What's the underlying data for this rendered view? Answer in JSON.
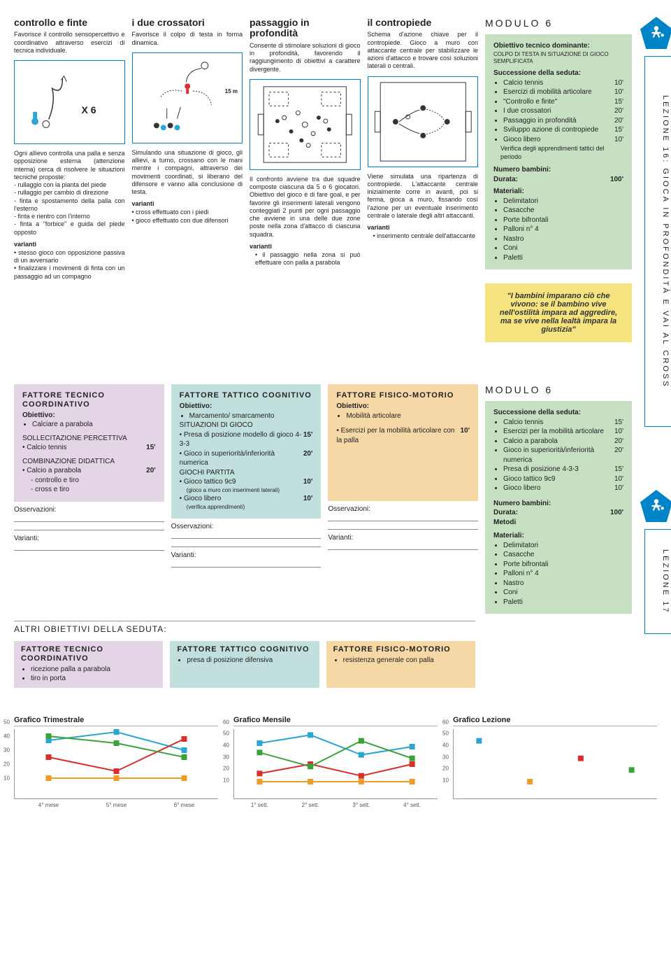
{
  "module_label": "MODULO 6",
  "lesson16_tab": "LEZIONE 16: GIOCA IN PROFONDITÀ E VAI AL CROSS",
  "lesson17_tab": "LEZIONE 17",
  "exercises": [
    {
      "title": "controllo e finte",
      "intro": "Favorisce il controllo sensopercettivo e coordinativo attraverso esercizi di tecnica individuale.",
      "x6": "X 6",
      "body": "Ogni allievo controlla una palla e senza opposizione esterna (attenzione interna) cerca di risolvere le situazioni tecniche proposte:\n- rullaggio con la pianta del piede\n- rullaggio per cambio di direzione\n- finta e spostamento della palla con l'esterno\n- finta e rientro con l'interno\n- finta a \"forbice\" e guida del piede opposto",
      "variants_head": "varianti",
      "variants": "• stesso gioco con opposizione passiva di un avversario\n• finalizzare i movimenti di finta con un passaggio ad un compagno"
    },
    {
      "title": "i due crossatori",
      "intro": "Favorisce il colpo di testa in forma dinamica.",
      "dist": "15 m",
      "body": "Simulando una situazione di gioco, gli allievi, a turno, crossano con le mani mentre i compagni, attraverso dei movimenti coordinati, si liberano del difensore e vanno alla conclusione di testa.",
      "variants_head": "varianti",
      "variants": "• cross effettuato con i piedi\n• gioco effettuato con due difensori"
    },
    {
      "title": "passaggio in profondità",
      "intro": "Consente di stimolare soluzioni di gioco in profondità, favorendo il raggiungimento di obiettivi a carattere divergente.",
      "body": "Il confronto avviene tra due squadre composte ciascuna da 5 o 6 giocatori. Obiettivo del gioco è di fare goal, e per favorire gli inserimenti laterali vengono conteggiati 2 punti per ogni passaggio che avviene in una delle due zone poste nella zona d'attacco di ciascuna squadra.",
      "variants_head": "varianti",
      "variants": "• il passaggio nella zona si può effettuare con palla a parabola"
    },
    {
      "title": "il contropiede",
      "intro": "Schema d'azione chiave per il contropiede. Gioco a muro con attaccante centrale per stabilizzare le azioni d'attacco e trovare così soluzioni laterali o centrali.",
      "body": "Viene simulata una ripartenza di contropiede. L'attaccante centrale inizialmente corre in avanti, poi si ferma, gioca a muro, fissando così l'azione per un eventuale inserimento centrale o laterale degli altri attaccanti.",
      "variants_head": "varianti",
      "variants": "• inserimento centrale dell'attaccante"
    }
  ],
  "mod6": {
    "obj_head": "Obiettivo tecnico dominante:",
    "obj_sub": "COLPO DI TESTA IN SITUAZIONE DI GIOCO SEMPLIFICATA",
    "succ_head": "Successione della seduta:",
    "items": [
      {
        "label": "Calcio tennis",
        "dur": "10'"
      },
      {
        "label": "Esercizi di mobilità articolare",
        "dur": "10'"
      },
      {
        "label": "\"Controllo e finte\"",
        "dur": "15'"
      },
      {
        "label": "I due crossatori",
        "dur": "20'"
      },
      {
        "label": "Passaggio in profondità",
        "dur": "20'"
      },
      {
        "label": "Sviluppo azione di contropiede",
        "dur": "15'"
      },
      {
        "label": "Gioco libero",
        "dur": "10'"
      }
    ],
    "verify": "Verifica degli apprendimenti tattici del periodo",
    "num_head": "Numero bambini:",
    "dur_head": "Durata:",
    "dur_val": "100'",
    "mat_head": "Materiali:",
    "materials": [
      "Delimitatori",
      "Casacche",
      "Porte bifrontali",
      "Palloni n° 4",
      "Nastro",
      "Coni",
      "Paletti"
    ]
  },
  "quote": "\"I bambini imparano ciò che vivono: se il bambino vive nell'ostilità impara ad aggredire, ma se vive nella lealtà impara la giustizia\"",
  "factors": {
    "coord": {
      "title": "FATTORE TECNICO COORDINATIVO",
      "obj_head": "Obiettivo:",
      "obj": "Calciare a parabola",
      "s1_head": "SOLLECITAZIONE PERCETTIVA",
      "s1_item": "Calcio tennis",
      "s1_dur": "15'",
      "s2_head": "COMBINAZIONE DIDATTICA",
      "s2_item": "Calcio a parabola",
      "s2_dur": "20'",
      "s2_sub1": "- controllo e tiro",
      "s2_sub2": "- cross e tiro",
      "obs": "Osservazioni:",
      "var": "Varianti:"
    },
    "cogn": {
      "title": "FATTORE TATTICO COGNITIVO",
      "obj_head": "Obiettivo:",
      "obj": "Marcamento/ smarcamento",
      "g1_head": "SITUAZIONI DI GIOCO",
      "g1a": "Presa di posizione modello di gioco 4-3-3",
      "g1a_dur": "15'",
      "g1b": "Gioco in superiorità/inferiorità numerica",
      "g1b_dur": "20'",
      "g2_head": "GIOCHI PARTITA",
      "g2a": "Gioco tattico 9c9",
      "g2a_dur": "10'",
      "g2a_sub": "(gioco a muro con inserimenti laterali)",
      "g2b": "Gioco libero",
      "g2b_dur": "10'",
      "g2b_sub": "(verifica apprendimenti)",
      "obs": "Osservazioni:",
      "var": "Varianti:"
    },
    "fis": {
      "title": "FATTORE FISICO-MOTORIO",
      "obj_head": "Obiettivo:",
      "obj": "Mobilità articolare",
      "i1": "Esercizi per la mobilità articolare con la palla",
      "i1_dur": "10'",
      "obs": "Osservazioni:",
      "var": "Varianti:"
    }
  },
  "mod6b": {
    "succ_head": "Successione della seduta:",
    "items": [
      {
        "label": "Calcio tennis",
        "dur": "15'"
      },
      {
        "label": "Esercizi per la mobilità articolare",
        "dur": "10'"
      },
      {
        "label": "Calcio a parabola",
        "dur": "20'"
      },
      {
        "label": "Gioco in superiorità/inferiorità numerica",
        "dur": "20'"
      },
      {
        "label": "Presa di posizione 4-3-3",
        "dur": "15'"
      },
      {
        "label": "Gioco tattico 9c9",
        "dur": "10'"
      },
      {
        "label": "Gioco libero",
        "dur": "10'"
      }
    ],
    "num_head": "Numero bambini:",
    "dur_head": "Durata:",
    "dur_val": "100'",
    "met_head": "Metodi",
    "mat_head": "Materiali:",
    "materials": [
      "Delimitatori",
      "Casacche",
      "Porte bifrontali",
      "Palloni n° 4",
      "Nastro",
      "Coni",
      "Paletti"
    ]
  },
  "other_obj_head": "ALTRI OBIETTIVI DELLA SEDUTA:",
  "other": {
    "coord_items": [
      "ricezione palla a parabola",
      "tiro in porta"
    ],
    "cogn_items": [
      "presa di posizione difensiva"
    ],
    "fis_items": [
      "resistenza generale con palla"
    ]
  },
  "charts": {
    "colors": {
      "blue": "#29a6d4",
      "orange": "#f09a2a",
      "red": "#d82e2e",
      "green": "#3aa23a"
    },
    "trim": {
      "title": "Grafico Trimestrale",
      "yticks": [
        10,
        20,
        30,
        40,
        50
      ],
      "xlabels": [
        "4° mese",
        "5° mese",
        "6° mese"
      ],
      "series": [
        {
          "color": "#29a6d4",
          "vals": [
            42,
            48,
            35
          ]
        },
        {
          "color": "#f09a2a",
          "vals": [
            15,
            15,
            15
          ]
        },
        {
          "color": "#d82e2e",
          "vals": [
            30,
            20,
            43
          ]
        },
        {
          "color": "#3aa23a",
          "vals": [
            45,
            40,
            30
          ]
        }
      ]
    },
    "mens": {
      "title": "Grafico Mensile",
      "yticks": [
        10,
        20,
        30,
        40,
        50,
        60
      ],
      "xlabels": [
        "1° sett.",
        "2° sett.",
        "3° sett.",
        "4° sett."
      ],
      "series": [
        {
          "color": "#29a6d4",
          "vals": [
            48,
            55,
            38,
            45
          ]
        },
        {
          "color": "#f09a2a",
          "vals": [
            15,
            15,
            15,
            15
          ]
        },
        {
          "color": "#d82e2e",
          "vals": [
            22,
            30,
            20,
            30
          ]
        },
        {
          "color": "#3aa23a",
          "vals": [
            40,
            28,
            50,
            35
          ]
        }
      ]
    },
    "lez": {
      "title": "Grafico Lezione",
      "yticks": [
        10,
        20,
        30,
        40,
        50,
        60
      ],
      "pts": [
        {
          "color": "#29a6d4",
          "val": 50
        },
        {
          "color": "#f09a2a",
          "val": 15
        },
        {
          "color": "#d82e2e",
          "val": 35
        },
        {
          "color": "#3aa23a",
          "val": 25
        }
      ]
    }
  }
}
